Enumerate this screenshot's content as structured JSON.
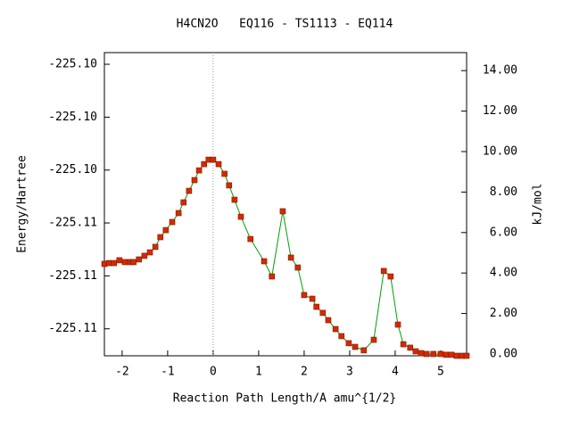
{
  "chart_data": {
    "type": "line",
    "title": "H4CN2O   EQ116 - TS1113 - EQ114",
    "x_label": "Reaction Path Length/A amu^{1/2}",
    "y_label": "Energy/Hartree",
    "y2_label": "kJ/mol",
    "xlim": [
      -2.39,
      5.57
    ],
    "xticks": [
      -2,
      -1,
      0,
      1,
      2,
      3,
      4,
      5
    ],
    "ylim": [
      -225.10801,
      -225.10228
    ],
    "yticks": [
      {
        "value": -225.1075,
        "label": "-225.11"
      },
      {
        "value": -225.1065,
        "label": "-225.11"
      },
      {
        "value": -225.1055,
        "label": "-225.11"
      },
      {
        "value": -225.1045,
        "label": "-225.10"
      },
      {
        "value": -225.1035,
        "label": "-225.10"
      },
      {
        "value": -225.1025,
        "label": "-225.10"
      }
    ],
    "y2lim": [
      -0.09,
      14.89
    ],
    "y2ticks": [
      {
        "value": 0,
        "label": "0.00"
      },
      {
        "value": 2,
        "label": "2.00"
      },
      {
        "value": 4,
        "label": "4.00"
      },
      {
        "value": 6,
        "label": "6.00"
      },
      {
        "value": 8,
        "label": "8.00"
      },
      {
        "value": 10,
        "label": "10.00"
      },
      {
        "value": 12,
        "label": "12.00"
      },
      {
        "value": 14,
        "label": "14.00"
      }
    ],
    "vline": 0,
    "x": [
      -2.39,
      -2.29,
      -2.18,
      -2.06,
      -1.94,
      -1.82,
      -1.75,
      -1.63,
      -1.51,
      -1.39,
      -1.27,
      -1.16,
      -1.04,
      -0.9,
      -0.76,
      -0.65,
      -0.53,
      -0.41,
      -0.31,
      -0.2,
      -0.1,
      0,
      0.12,
      0.25,
      0.35,
      0.47,
      0.61,
      0.82,
      1.12,
      1.29,
      1.53,
      1.71,
      1.86,
      2.0,
      2.18,
      2.27,
      2.41,
      2.53,
      2.69,
      2.82,
      2.98,
      3.12,
      3.31,
      3.53,
      3.75,
      3.9,
      4.06,
      4.18,
      4.33,
      4.45,
      4.57,
      4.69,
      4.84,
      5.0,
      5.12,
      5.24,
      5.35,
      5.47,
      5.57
    ],
    "series": [
      {
        "color": "#d42a00",
        "line_color": "#00a000",
        "axis": "y2",
        "values": [
          4.45,
          4.49,
          4.49,
          4.63,
          4.54,
          4.54,
          4.54,
          4.67,
          4.85,
          5.02,
          5.29,
          5.77,
          6.12,
          6.52,
          6.96,
          7.49,
          8.06,
          8.59,
          9.07,
          9.38,
          9.6,
          9.6,
          9.38,
          8.9,
          8.33,
          7.62,
          6.78,
          5.68,
          4.58,
          3.83,
          7.05,
          4.76,
          4.27,
          2.91,
          2.73,
          2.33,
          2.03,
          1.67,
          1.23,
          0.88,
          0.53,
          0.35,
          0.18,
          0.7,
          4.1,
          3.83,
          1.45,
          0.48,
          0.31,
          0.13,
          0.04,
          0,
          0,
          0,
          -0.04,
          -0.04,
          -0.09,
          -0.09,
          -0.09
        ]
      }
    ]
  }
}
